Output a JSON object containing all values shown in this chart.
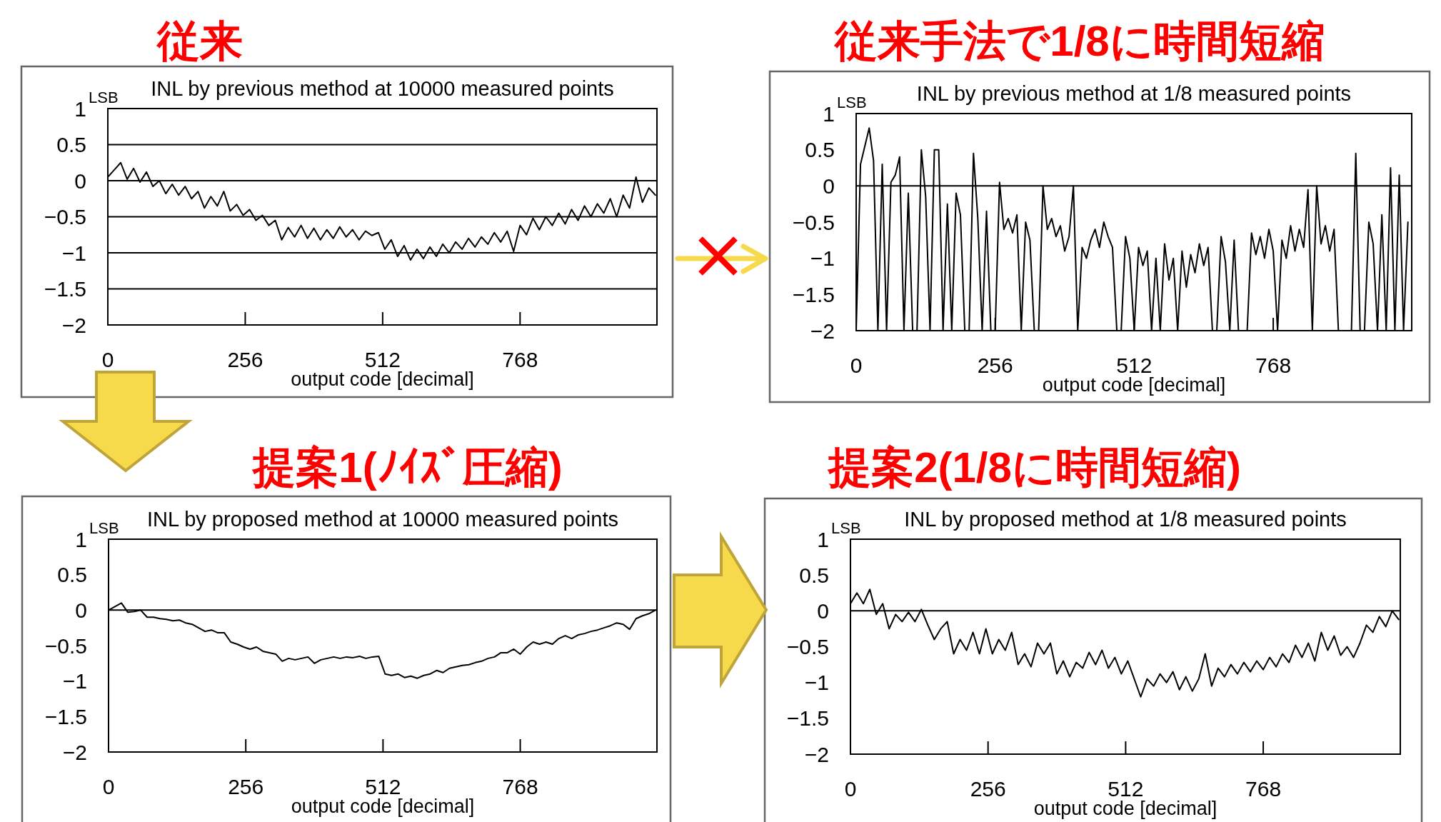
{
  "chart_data": [
    {
      "type": "line",
      "title": "従来",
      "subtitle": "INL by previous method at 10000 measured points",
      "xlabel": "output code [decimal]",
      "ylabel": "LSB",
      "xlim": [
        0,
        1023
      ],
      "xticks": [
        0,
        256,
        512,
        768
      ],
      "ylim": [
        -2,
        1
      ],
      "yticks": [
        {
          "value": -2,
          "label": "−2"
        },
        {
          "value": -1.5,
          "label": "−1.5"
        },
        {
          "value": -1,
          "label": "−1"
        },
        {
          "value": -0.5,
          "label": "−0.5"
        },
        0,
        0.5,
        1
      ],
      "grid": "y",
      "x": [
        0,
        12,
        24,
        36,
        48,
        60,
        72,
        84,
        96,
        108,
        120,
        132,
        144,
        156,
        168,
        180,
        192,
        204,
        216,
        228,
        240,
        252,
        264,
        276,
        288,
        300,
        312,
        324,
        336,
        348,
        360,
        372,
        384,
        396,
        408,
        420,
        432,
        444,
        456,
        468,
        480,
        492,
        504,
        516,
        528,
        540,
        552,
        564,
        576,
        588,
        600,
        612,
        624,
        636,
        648,
        660,
        672,
        684,
        696,
        708,
        720,
        732,
        744,
        756,
        768,
        780,
        792,
        804,
        816,
        828,
        840,
        852,
        864,
        876,
        888,
        900,
        912,
        924,
        936,
        948,
        960,
        972,
        984,
        996,
        1008,
        1020
      ],
      "series": [
        {
          "color": "#000000",
          "values": [
            0.05,
            0.15,
            0.25,
            0.02,
            0.17,
            -0.02,
            0.12,
            -0.08,
            0.0,
            -0.18,
            -0.05,
            -0.2,
            -0.08,
            -0.25,
            -0.15,
            -0.38,
            -0.22,
            -0.35,
            -0.15,
            -0.42,
            -0.33,
            -0.48,
            -0.4,
            -0.55,
            -0.48,
            -0.62,
            -0.55,
            -0.82,
            -0.65,
            -0.78,
            -0.62,
            -0.8,
            -0.66,
            -0.82,
            -0.68,
            -0.8,
            -0.64,
            -0.78,
            -0.68,
            -0.82,
            -0.7,
            -0.76,
            -0.72,
            -0.95,
            -0.82,
            -1.05,
            -0.9,
            -1.1,
            -0.95,
            -1.08,
            -0.92,
            -1.05,
            -0.88,
            -1.0,
            -0.85,
            -0.95,
            -0.8,
            -0.92,
            -0.78,
            -0.88,
            -0.72,
            -0.85,
            -0.7,
            -0.98,
            -0.62,
            -0.75,
            -0.52,
            -0.68,
            -0.5,
            -0.62,
            -0.45,
            -0.6,
            -0.4,
            -0.55,
            -0.35,
            -0.5,
            -0.32,
            -0.45,
            -0.25,
            -0.5,
            -0.2,
            -0.38,
            0.05,
            -0.3,
            -0.1,
            -0.2
          ]
        }
      ]
    },
    {
      "type": "line",
      "title": "従来手法で1/8に時間短縮",
      "subtitle": "INL by previous method at 1/8 measured points",
      "xlabel": "output code [decimal]",
      "ylabel": "LSB",
      "xlim": [
        0,
        1023
      ],
      "xticks": [
        0,
        256,
        512,
        768
      ],
      "ylim": [
        -2,
        1
      ],
      "yticks": [
        {
          "value": -2,
          "label": "−2"
        },
        {
          "value": -1.5,
          "label": "−1.5"
        },
        {
          "value": -1,
          "label": "−1"
        },
        {
          "value": -0.5,
          "label": "−0.5"
        },
        0,
        0.5,
        1
      ],
      "ref_lines": [
        {
          "axis": "y",
          "value": 0,
          "color": "#000000"
        }
      ],
      "x": [
        0,
        8,
        16,
        24,
        32,
        40,
        48,
        56,
        64,
        72,
        80,
        88,
        96,
        104,
        112,
        120,
        128,
        136,
        144,
        152,
        160,
        168,
        176,
        184,
        192,
        200,
        208,
        216,
        224,
        232,
        240,
        248,
        256,
        264,
        272,
        280,
        288,
        296,
        304,
        312,
        320,
        328,
        336,
        344,
        352,
        360,
        368,
        376,
        384,
        392,
        400,
        408,
        416,
        424,
        432,
        440,
        448,
        456,
        464,
        472,
        480,
        488,
        496,
        504,
        512,
        520,
        528,
        536,
        544,
        552,
        560,
        568,
        576,
        584,
        592,
        600,
        608,
        616,
        624,
        632,
        640,
        648,
        656,
        664,
        672,
        680,
        688,
        696,
        704,
        712,
        720,
        728,
        736,
        744,
        752,
        760,
        768,
        776,
        784,
        792,
        800,
        808,
        816,
        824,
        832,
        840,
        848,
        856,
        864,
        872,
        880,
        888,
        896,
        904,
        912,
        920,
        928,
        936,
        944,
        952,
        960,
        968,
        976,
        984,
        992,
        1000,
        1008,
        1016
      ],
      "series": [
        {
          "color": "#000000",
          "values": [
            -2,
            0.3,
            0.55,
            0.8,
            0.35,
            -2,
            0.3,
            -2,
            0.05,
            0.15,
            0.4,
            -2,
            -0.1,
            -2,
            -2,
            0.5,
            -0.15,
            -2,
            0.5,
            0.5,
            -2,
            -0.25,
            -2,
            -0.1,
            -0.4,
            -2,
            -2,
            0.45,
            -0.45,
            -2,
            -0.35,
            -2,
            -2,
            0.05,
            -0.6,
            -0.45,
            -0.65,
            -0.4,
            -2,
            -0.5,
            -0.75,
            -2,
            -2,
            0.0,
            -0.6,
            -0.45,
            -0.7,
            -0.55,
            -0.9,
            -0.7,
            0.0,
            -2,
            -0.85,
            -1.0,
            -0.75,
            -0.6,
            -0.85,
            -0.5,
            -0.7,
            -0.85,
            -2,
            -2,
            -0.7,
            -1.0,
            -2,
            -0.85,
            -1.1,
            -0.9,
            -2,
            -1.0,
            -2,
            -0.8,
            -1.3,
            -1.0,
            -2,
            -0.9,
            -1.4,
            -0.95,
            -1.2,
            -0.8,
            -1.1,
            -0.85,
            -2,
            -2,
            -0.7,
            -1.05,
            -2,
            -0.75,
            -2,
            -2,
            -2,
            -0.65,
            -0.95,
            -0.7,
            -1.0,
            -0.6,
            -0.9,
            -2,
            -0.75,
            -1.0,
            -0.55,
            -0.9,
            -0.6,
            -0.85,
            -0.05,
            -2,
            0.0,
            -0.8,
            -0.55,
            -0.9,
            -0.6,
            -2,
            -2,
            -2,
            -2,
            0.45,
            -2,
            -2,
            -0.5,
            -0.8,
            -2,
            -0.4,
            -2,
            0.25,
            -2,
            0.15,
            -2,
            -0.5
          ]
        }
      ]
    },
    {
      "type": "line",
      "title": "提案1(ﾉｲｽﾞ圧縮)",
      "subtitle": "INL by proposed method at 10000 measured points",
      "xlabel": "output code [decimal]",
      "ylabel": "LSB",
      "xlim": [
        0,
        1023
      ],
      "xticks": [
        0,
        256,
        512,
        768
      ],
      "ylim": [
        -2,
        1
      ],
      "yticks": [
        {
          "value": -2,
          "label": "−2"
        },
        {
          "value": -1.5,
          "label": "−1.5"
        },
        {
          "value": -1,
          "label": "−1"
        },
        {
          "value": -0.5,
          "label": "−0.5"
        },
        0,
        0.5,
        1
      ],
      "ref_lines": [
        {
          "axis": "y",
          "value": 0,
          "color": "#000000"
        }
      ],
      "x": [
        0,
        12,
        24,
        36,
        48,
        60,
        72,
        84,
        96,
        108,
        120,
        132,
        144,
        156,
        168,
        180,
        192,
        204,
        216,
        228,
        240,
        252,
        264,
        276,
        288,
        300,
        312,
        324,
        336,
        348,
        360,
        372,
        384,
        396,
        408,
        420,
        432,
        444,
        456,
        468,
        480,
        492,
        504,
        516,
        528,
        540,
        552,
        564,
        576,
        588,
        600,
        612,
        624,
        636,
        648,
        660,
        672,
        684,
        696,
        708,
        720,
        732,
        744,
        756,
        768,
        780,
        792,
        804,
        816,
        828,
        840,
        852,
        864,
        876,
        888,
        900,
        912,
        924,
        936,
        948,
        960,
        972,
        984,
        996,
        1008,
        1020
      ],
      "series": [
        {
          "color": "#000000",
          "values": [
            0.0,
            0.05,
            0.1,
            -0.03,
            -0.02,
            0.0,
            -0.1,
            -0.1,
            -0.12,
            -0.13,
            -0.15,
            -0.14,
            -0.18,
            -0.2,
            -0.25,
            -0.3,
            -0.28,
            -0.32,
            -0.32,
            -0.45,
            -0.48,
            -0.52,
            -0.55,
            -0.52,
            -0.58,
            -0.6,
            -0.62,
            -0.72,
            -0.68,
            -0.7,
            -0.68,
            -0.66,
            -0.75,
            -0.7,
            -0.68,
            -0.66,
            -0.68,
            -0.66,
            -0.67,
            -0.65,
            -0.68,
            -0.66,
            -0.65,
            -0.9,
            -0.92,
            -0.9,
            -0.95,
            -0.93,
            -0.96,
            -0.92,
            -0.9,
            -0.85,
            -0.88,
            -0.82,
            -0.8,
            -0.78,
            -0.77,
            -0.74,
            -0.72,
            -0.68,
            -0.66,
            -0.6,
            -0.6,
            -0.55,
            -0.62,
            -0.52,
            -0.45,
            -0.48,
            -0.45,
            -0.48,
            -0.4,
            -0.36,
            -0.4,
            -0.35,
            -0.33,
            -0.3,
            -0.28,
            -0.25,
            -0.22,
            -0.18,
            -0.2,
            -0.27,
            -0.12,
            -0.08,
            -0.05,
            0.0
          ]
        }
      ]
    },
    {
      "type": "line",
      "title": "提案2(1/8に時間短縮)",
      "subtitle": "INL by proposed method at 1/8 measured points",
      "xlabel": "output code [decimal]",
      "ylabel": "LSB",
      "xlim": [
        0,
        1023
      ],
      "xticks": [
        0,
        256,
        512,
        768
      ],
      "ylim": [
        -2,
        1
      ],
      "yticks": [
        {
          "value": -2,
          "label": "−2"
        },
        {
          "value": -1.5,
          "label": "−1.5"
        },
        {
          "value": -1,
          "label": "−1"
        },
        {
          "value": -0.5,
          "label": "−0.5"
        },
        0,
        0.5,
        1
      ],
      "ref_lines": [
        {
          "axis": "y",
          "value": 0,
          "color": "#000000"
        }
      ],
      "x": [
        0,
        12,
        24,
        36,
        48,
        60,
        72,
        84,
        96,
        108,
        120,
        132,
        144,
        156,
        168,
        180,
        192,
        204,
        216,
        228,
        240,
        252,
        264,
        276,
        288,
        300,
        312,
        324,
        336,
        348,
        360,
        372,
        384,
        396,
        408,
        420,
        432,
        444,
        456,
        468,
        480,
        492,
        504,
        516,
        528,
        540,
        552,
        564,
        576,
        588,
        600,
        612,
        624,
        636,
        648,
        660,
        672,
        684,
        696,
        708,
        720,
        732,
        744,
        756,
        768,
        780,
        792,
        804,
        816,
        828,
        840,
        852,
        864,
        876,
        888,
        900,
        912,
        924,
        936,
        948,
        960,
        972,
        984,
        996,
        1008,
        1020
      ],
      "series": [
        {
          "color": "#000000",
          "values": [
            0.1,
            0.25,
            0.1,
            0.3,
            -0.05,
            0.1,
            -0.25,
            -0.05,
            -0.15,
            -0.02,
            -0.15,
            0.02,
            -0.2,
            -0.4,
            -0.25,
            -0.15,
            -0.6,
            -0.4,
            -0.55,
            -0.3,
            -0.6,
            -0.25,
            -0.6,
            -0.4,
            -0.55,
            -0.3,
            -0.75,
            -0.6,
            -0.78,
            -0.45,
            -0.6,
            -0.45,
            -0.88,
            -0.7,
            -0.92,
            -0.72,
            -0.8,
            -0.58,
            -0.75,
            -0.55,
            -0.8,
            -0.65,
            -0.88,
            -0.7,
            -0.95,
            -1.2,
            -0.95,
            -1.05,
            -0.88,
            -1.0,
            -0.85,
            -1.1,
            -0.92,
            -1.12,
            -0.95,
            -0.6,
            -1.05,
            -0.8,
            -0.92,
            -0.75,
            -0.88,
            -0.72,
            -0.85,
            -0.7,
            -0.82,
            -0.65,
            -0.78,
            -0.6,
            -0.72,
            -0.48,
            -0.65,
            -0.45,
            -0.7,
            -0.3,
            -0.55,
            -0.35,
            -0.62,
            -0.5,
            -0.65,
            -0.45,
            -0.2,
            -0.3,
            -0.08,
            -0.22,
            0.0,
            -0.12
          ]
        }
      ]
    }
  ]
}
